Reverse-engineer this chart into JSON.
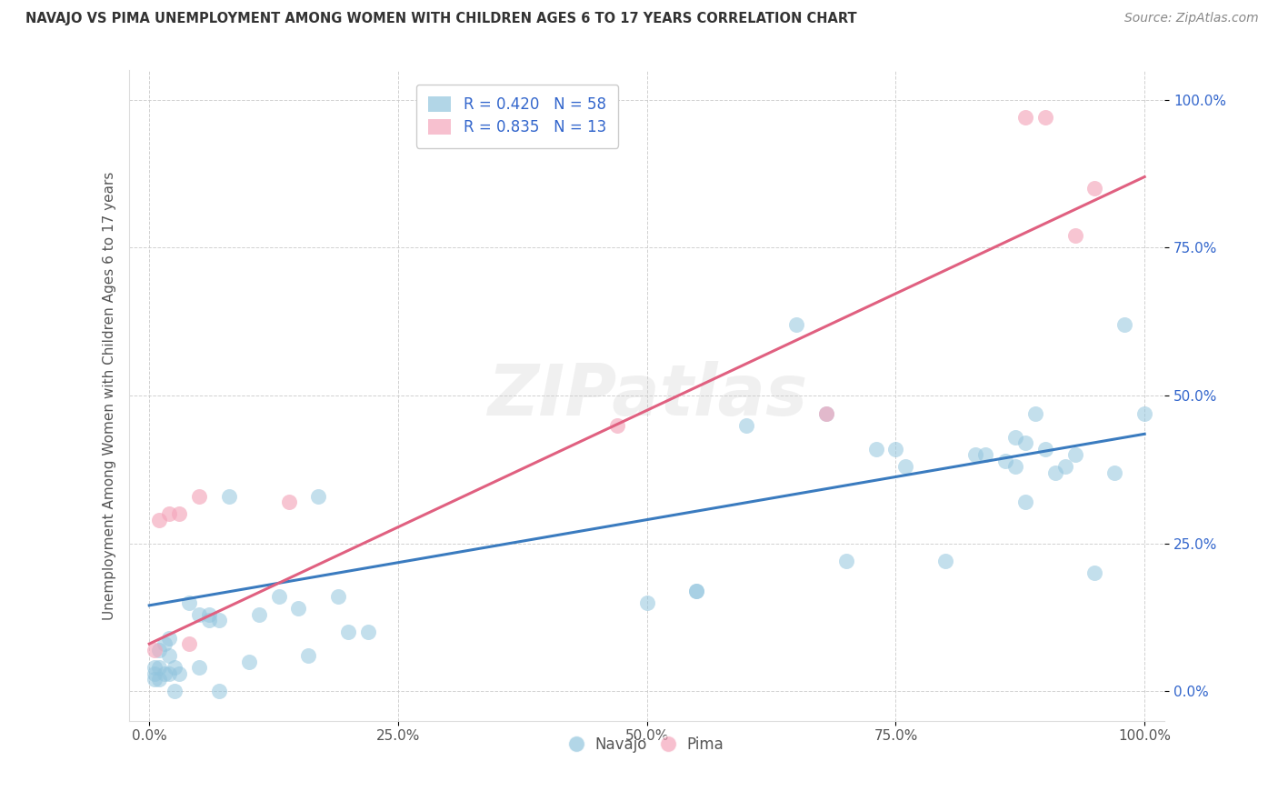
{
  "title": "NAVAJO VS PIMA UNEMPLOYMENT AMONG WOMEN WITH CHILDREN AGES 6 TO 17 YEARS CORRELATION CHART",
  "source": "Source: ZipAtlas.com",
  "ylabel": "Unemployment Among Women with Children Ages 6 to 17 years",
  "navajo_R": 0.42,
  "navajo_N": 58,
  "pima_R": 0.835,
  "pima_N": 13,
  "navajo_color": "#92c5de",
  "pima_color": "#f4a6bb",
  "navajo_line_color": "#3a7bbf",
  "pima_line_color": "#e06080",
  "background_color": "#ffffff",
  "watermark": "ZIPatlas",
  "xlim": [
    -0.02,
    1.02
  ],
  "ylim": [
    -0.05,
    1.05
  ],
  "navajo_line_x0": 0.0,
  "navajo_line_y0": 0.145,
  "navajo_line_x1": 1.0,
  "navajo_line_y1": 0.435,
  "pima_line_x0": 0.0,
  "pima_line_y0": 0.08,
  "pima_line_x1": 1.0,
  "pima_line_y1": 0.87,
  "navajo_x": [
    0.005,
    0.005,
    0.005,
    0.01,
    0.01,
    0.01,
    0.015,
    0.015,
    0.02,
    0.02,
    0.02,
    0.025,
    0.025,
    0.03,
    0.04,
    0.05,
    0.05,
    0.06,
    0.06,
    0.07,
    0.07,
    0.08,
    0.1,
    0.11,
    0.13,
    0.15,
    0.16,
    0.17,
    0.19,
    0.2,
    0.22,
    0.5,
    0.55,
    0.55,
    0.6,
    0.65,
    0.68,
    0.7,
    0.73,
    0.75,
    0.76,
    0.8,
    0.83,
    0.84,
    0.86,
    0.87,
    0.87,
    0.88,
    0.88,
    0.89,
    0.9,
    0.91,
    0.92,
    0.93,
    0.95,
    0.97,
    0.98,
    1.0
  ],
  "navajo_y": [
    0.04,
    0.03,
    0.02,
    0.07,
    0.04,
    0.02,
    0.08,
    0.03,
    0.09,
    0.06,
    0.03,
    0.04,
    0.0,
    0.03,
    0.15,
    0.13,
    0.04,
    0.13,
    0.12,
    0.12,
    0.0,
    0.33,
    0.05,
    0.13,
    0.16,
    0.14,
    0.06,
    0.33,
    0.16,
    0.1,
    0.1,
    0.15,
    0.17,
    0.17,
    0.45,
    0.62,
    0.47,
    0.22,
    0.41,
    0.41,
    0.38,
    0.22,
    0.4,
    0.4,
    0.39,
    0.38,
    0.43,
    0.32,
    0.42,
    0.47,
    0.41,
    0.37,
    0.38,
    0.4,
    0.2,
    0.37,
    0.62,
    0.47
  ],
  "pima_x": [
    0.005,
    0.01,
    0.02,
    0.03,
    0.04,
    0.05,
    0.14,
    0.47,
    0.68,
    0.88,
    0.9,
    0.93,
    0.95
  ],
  "pima_y": [
    0.07,
    0.29,
    0.3,
    0.3,
    0.08,
    0.33,
    0.32,
    0.45,
    0.47,
    0.97,
    0.97,
    0.77,
    0.85
  ]
}
